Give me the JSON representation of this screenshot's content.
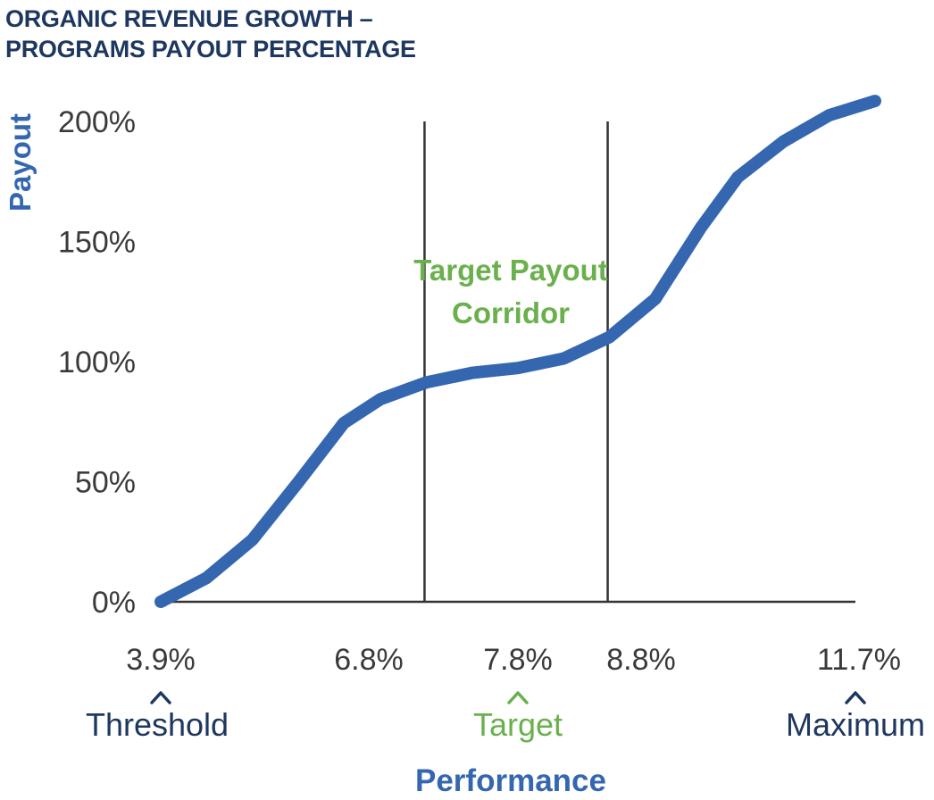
{
  "chart_data": {
    "type": "line",
    "title_lines": [
      "ORGANIC REVENUE GROWTH –",
      "PROGRAMS PAYOUT PERCENTAGE"
    ],
    "xlabel": "Performance",
    "ylabel": "Payout",
    "ylim": [
      0,
      200
    ],
    "xlim": [
      3.9,
      11.7
    ],
    "y_ticks": [
      {
        "value": 0,
        "label": "0%"
      },
      {
        "value": 50,
        "label": "50%"
      },
      {
        "value": 100,
        "label": "100%"
      },
      {
        "value": 150,
        "label": "150%"
      },
      {
        "value": 200,
        "label": "200%"
      }
    ],
    "x_ticks": [
      {
        "value": 3.9,
        "label": "3.9%"
      },
      {
        "value": 6.8,
        "label": "6.8%"
      },
      {
        "value": 7.8,
        "label": "7.8%"
      },
      {
        "value": 8.8,
        "label": "8.8%"
      },
      {
        "value": 11.7,
        "label": "11.7%"
      }
    ],
    "markers": [
      {
        "value": 3.9,
        "caret": "^",
        "label": "Threshold",
        "color": "#1e3760"
      },
      {
        "value": 7.8,
        "caret": "^",
        "label": "Target",
        "color": "#6ab04c"
      },
      {
        "value": 11.7,
        "caret": "^",
        "label": "Maximum",
        "color": "#1e3760"
      }
    ],
    "corridor": {
      "from": 6.8,
      "to": 8.8,
      "label_lines": [
        "Target Payout",
        "Corridor"
      ],
      "color": "#6ab04c"
    },
    "series": [
      {
        "color": "#3467b0",
        "points": [
          {
            "x": 3.9,
            "y": 0
          },
          {
            "x": 4.4,
            "y": 10
          },
          {
            "x": 4.9,
            "y": 26
          },
          {
            "x": 5.4,
            "y": 50
          },
          {
            "x": 5.9,
            "y": 75
          },
          {
            "x": 6.3,
            "y": 85
          },
          {
            "x": 6.8,
            "y": 92
          },
          {
            "x": 7.3,
            "y": 96
          },
          {
            "x": 7.8,
            "y": 98
          },
          {
            "x": 8.3,
            "y": 102
          },
          {
            "x": 8.8,
            "y": 111
          },
          {
            "x": 9.3,
            "y": 127
          },
          {
            "x": 9.8,
            "y": 157
          },
          {
            "x": 10.2,
            "y": 178
          },
          {
            "x": 10.7,
            "y": 193
          },
          {
            "x": 11.2,
            "y": 204
          },
          {
            "x": 11.7,
            "y": 210
          }
        ]
      }
    ],
    "colors": {
      "title": "#1e3760",
      "axis_label": "#3467b0",
      "tick": "#3a3a3a",
      "axis": "#333333"
    }
  }
}
